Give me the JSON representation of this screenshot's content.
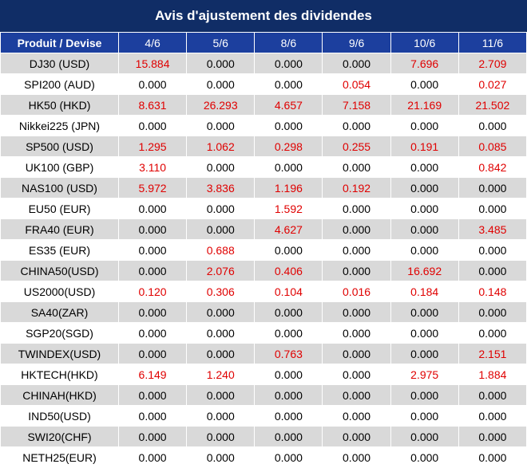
{
  "header": {
    "title": "Avis d'ajustement des dividendes"
  },
  "table": {
    "columns": [
      "Produit / Devise",
      "4/6",
      "5/6",
      "8/6",
      "9/6",
      "10/6",
      "11/6"
    ],
    "rows": [
      [
        "DJ30 (USD)",
        "15.884",
        "0.000",
        "0.000",
        "0.000",
        "7.696",
        "2.709"
      ],
      [
        "SPI200 (AUD)",
        "0.000",
        "0.000",
        "0.000",
        "0.054",
        "0.000",
        "0.027"
      ],
      [
        "HK50 (HKD)",
        "8.631",
        "26.293",
        "4.657",
        "7.158",
        "21.169",
        "21.502"
      ],
      [
        "Nikkei225 (JPN)",
        "0.000",
        "0.000",
        "0.000",
        "0.000",
        "0.000",
        "0.000"
      ],
      [
        "SP500 (USD)",
        "1.295",
        "1.062",
        "0.298",
        "0.255",
        "0.191",
        "0.085"
      ],
      [
        "UK100 (GBP)",
        "3.110",
        "0.000",
        "0.000",
        "0.000",
        "0.000",
        "0.842"
      ],
      [
        "NAS100 (USD)",
        "5.972",
        "3.836",
        "1.196",
        "0.192",
        "0.000",
        "0.000"
      ],
      [
        "EU50 (EUR)",
        "0.000",
        "0.000",
        "1.592",
        "0.000",
        "0.000",
        "0.000"
      ],
      [
        "FRA40 (EUR)",
        "0.000",
        "0.000",
        "4.627",
        "0.000",
        "0.000",
        "3.485"
      ],
      [
        "ES35 (EUR)",
        "0.000",
        "0.688",
        "0.000",
        "0.000",
        "0.000",
        "0.000"
      ],
      [
        "CHINA50(USD)",
        "0.000",
        "2.076",
        "0.406",
        "0.000",
        "16.692",
        "0.000"
      ],
      [
        "US2000(USD)",
        "0.120",
        "0.306",
        "0.104",
        "0.016",
        "0.184",
        "0.148"
      ],
      [
        "SA40(ZAR)",
        "0.000",
        "0.000",
        "0.000",
        "0.000",
        "0.000",
        "0.000"
      ],
      [
        "SGP20(SGD)",
        "0.000",
        "0.000",
        "0.000",
        "0.000",
        "0.000",
        "0.000"
      ],
      [
        "TWINDEX(USD)",
        "0.000",
        "0.000",
        "0.763",
        "0.000",
        "0.000",
        "2.151"
      ],
      [
        "HKTECH(HKD)",
        "6.149",
        "1.240",
        "0.000",
        "0.000",
        "2.975",
        "1.884"
      ],
      [
        "CHINAH(HKD)",
        "0.000",
        "0.000",
        "0.000",
        "0.000",
        "0.000",
        "0.000"
      ],
      [
        "IND50(USD)",
        "0.000",
        "0.000",
        "0.000",
        "0.000",
        "0.000",
        "0.000"
      ],
      [
        "SWI20(CHF)",
        "0.000",
        "0.000",
        "0.000",
        "0.000",
        "0.000",
        "0.000"
      ],
      [
        "NETH25(EUR)",
        "0.000",
        "0.000",
        "0.000",
        "0.000",
        "0.000",
        "0.000"
      ]
    ]
  }
}
